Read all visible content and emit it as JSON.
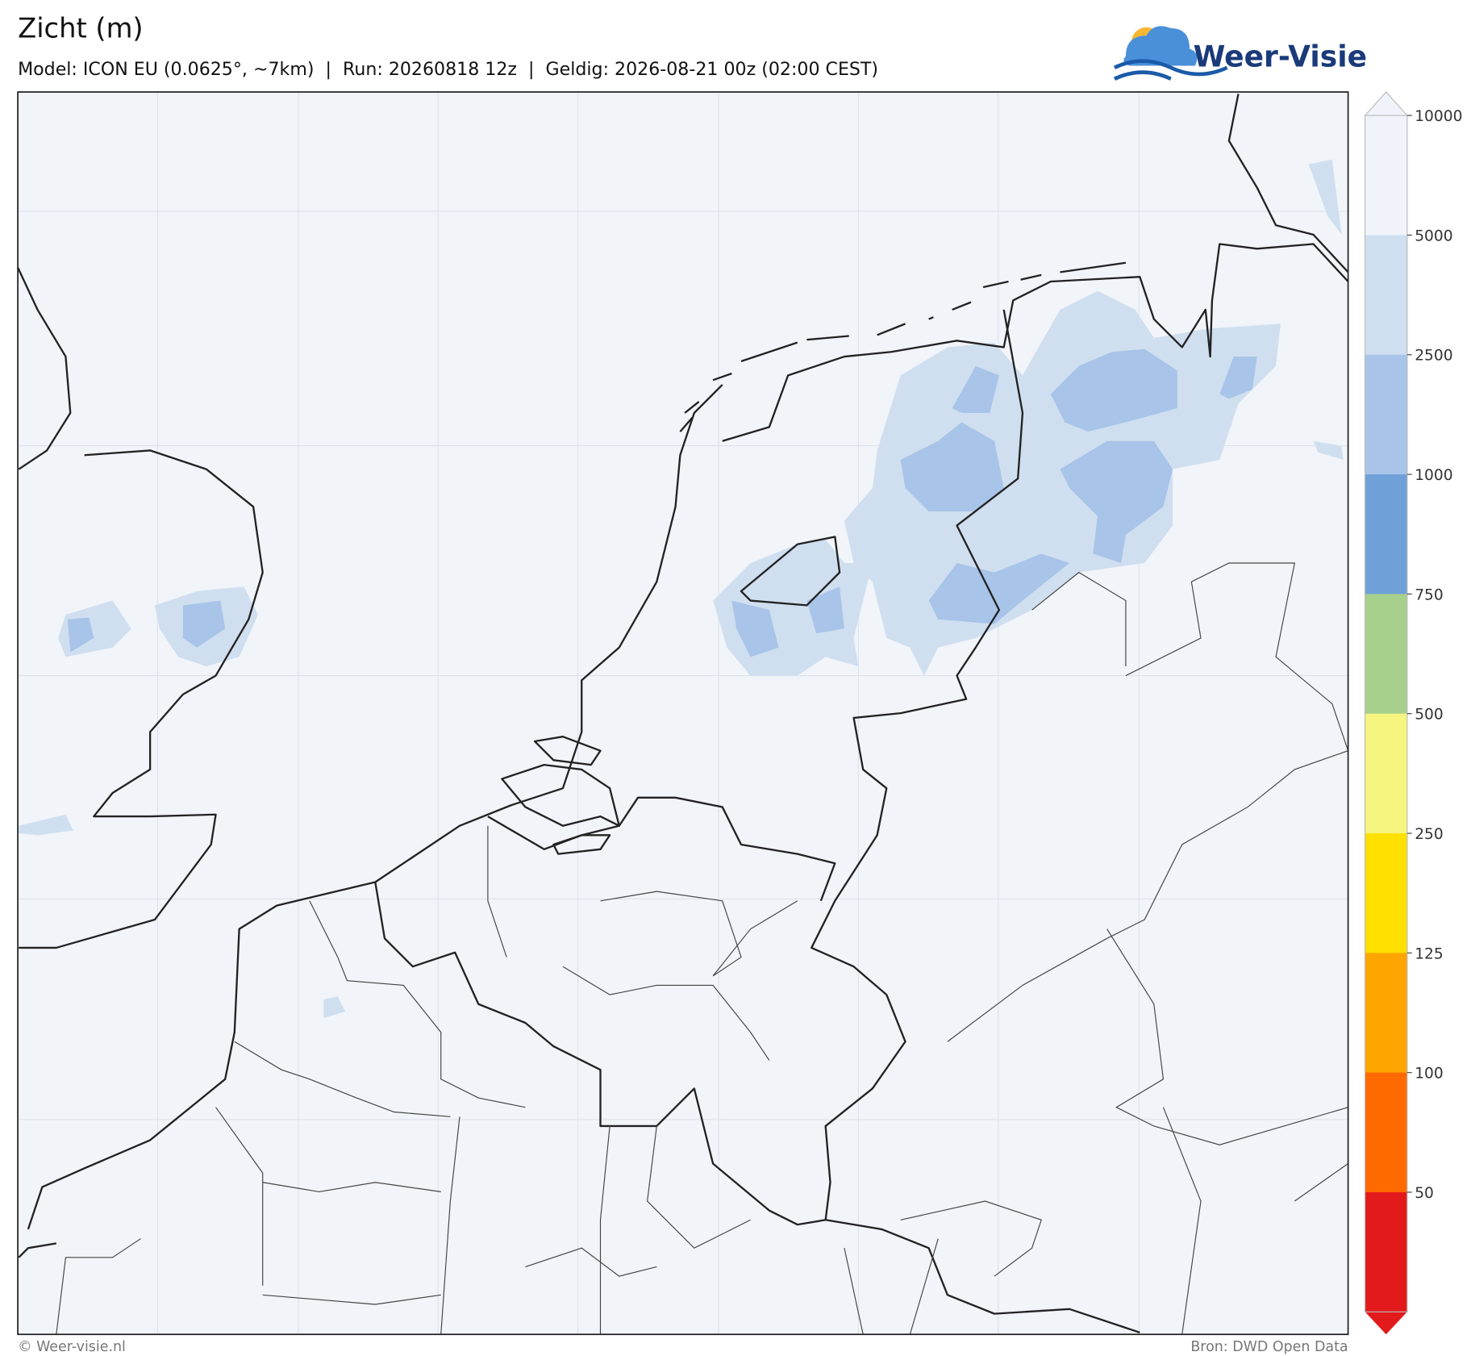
{
  "header": {
    "title": "Zicht (m)",
    "subtitle": "Model: ICON EU (0.0625°, ~7km)  |  Run: 20260818 12z  |  Geldig: 2026-08-21 00z (02:00 CEST)",
    "logo": "Weer-Visie"
  },
  "colorbar": {
    "ticks": [
      10000,
      5000,
      2500,
      1000,
      750,
      500,
      250,
      125,
      100,
      50
    ],
    "colors": [
      "#f0f4fa",
      "#cfdff0",
      "#a8c4e8",
      "#6fa0d8",
      "#a8d08d",
      "#f5f580",
      "#ffe000",
      "#ffa500",
      "#ff6a00",
      "#e31a1c"
    ]
  },
  "footer": {
    "left": "© Weer-visie.nl",
    "right": "Bron: DWD Open Data"
  }
}
